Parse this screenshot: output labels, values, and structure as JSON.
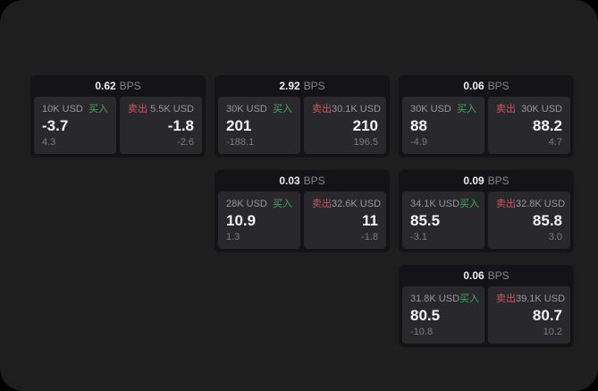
{
  "labels": {
    "bps_unit": "BPS",
    "buy": "买入",
    "sell": "卖出"
  },
  "colors": {
    "buy": "#3ea86c",
    "sell": "#ce5268",
    "surface": "#1e1e1f",
    "card": "#141416",
    "panel": "#29292b"
  },
  "cards": [
    {
      "bps": "0.62",
      "buy": {
        "amount": "10K USD",
        "price": "-3.7",
        "delta": "4.3"
      },
      "sell": {
        "amount": "5.5K USD",
        "price": "-1.8",
        "delta": "-2.6"
      }
    },
    {
      "bps": "2.92",
      "buy": {
        "amount": "30K USD",
        "price": "201",
        "delta": "-188.1"
      },
      "sell": {
        "amount": "30.1K USD",
        "price": "210",
        "delta": "196.5"
      }
    },
    {
      "bps": "0.06",
      "buy": {
        "amount": "30K USD",
        "price": "88",
        "delta": "-4.9"
      },
      "sell": {
        "amount": "30K USD",
        "price": "88.2",
        "delta": "4.7"
      }
    },
    {
      "bps": "0.03",
      "buy": {
        "amount": "28K USD",
        "price": "10.9",
        "delta": "1.3"
      },
      "sell": {
        "amount": "32.6K USD",
        "price": "11",
        "delta": "-1.8"
      }
    },
    {
      "bps": "0.09",
      "buy": {
        "amount": "34.1K USD",
        "price": "85.5",
        "delta": "-3.1"
      },
      "sell": {
        "amount": "32.8K USD",
        "price": "85.8",
        "delta": "3.0"
      }
    },
    {
      "bps": "0.06",
      "buy": {
        "amount": "31.8K USD",
        "price": "80.5",
        "delta": "-10.8"
      },
      "sell": {
        "amount": "39.1K USD",
        "price": "80.7",
        "delta": "10.2"
      }
    }
  ]
}
